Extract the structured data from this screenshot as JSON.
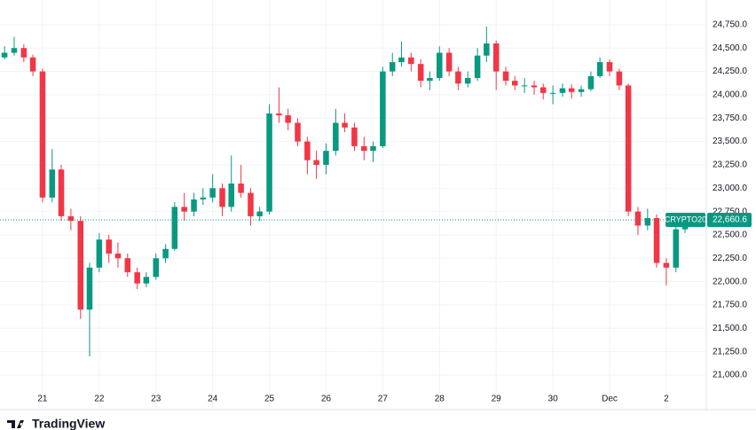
{
  "chart_data": {
    "type": "candlestick",
    "x": [
      20.33,
      20.5,
      20.67,
      20.83,
      21,
      21.17,
      21.33,
      21.5,
      21.67,
      21.83,
      22,
      22.17,
      22.33,
      22.5,
      22.67,
      22.83,
      23,
      23.17,
      23.33,
      23.5,
      23.67,
      23.83,
      24,
      24.17,
      24.33,
      24.5,
      24.67,
      24.83,
      25,
      25.17,
      25.33,
      25.5,
      25.67,
      25.83,
      26,
      26.17,
      26.33,
      26.5,
      26.67,
      26.83,
      27,
      27.17,
      27.33,
      27.5,
      27.67,
      27.83,
      28,
      28.17,
      28.33,
      28.5,
      28.67,
      28.83,
      29,
      29.17,
      29.33,
      29.5,
      29.67,
      29.83,
      30,
      30.17,
      30.33,
      30.5,
      30.67,
      30.83,
      31,
      31.17,
      31.33,
      31.5,
      31.67,
      31.83,
      32,
      32.17,
      32.33
    ],
    "open": [
      24400,
      24450,
      24500,
      24400,
      24250,
      22900,
      23200,
      22700,
      22650,
      21700,
      22150,
      22450,
      22300,
      22250,
      22100,
      21980,
      22050,
      22250,
      22350,
      22800,
      22750,
      22880,
      22900,
      23000,
      22800,
      23050,
      22950,
      22700,
      22750,
      23800,
      23780,
      23700,
      23500,
      23300,
      23250,
      23400,
      23700,
      23650,
      23450,
      23400,
      23450,
      24250,
      24350,
      24400,
      24330,
      24150,
      24180,
      24450,
      24250,
      24120,
      24180,
      24420,
      24550,
      24250,
      24150,
      24100,
      24100,
      24080,
      24020,
      24020,
      24070,
      24030,
      24060,
      24200,
      24350,
      24250,
      24100,
      22750,
      22600,
      22680,
      22200,
      22150,
      22560
    ],
    "high": [
      24520,
      24620,
      24540,
      24430,
      24280,
      23420,
      23250,
      22780,
      22700,
      22200,
      22520,
      22500,
      22420,
      22300,
      22150,
      22100,
      22300,
      22400,
      22850,
      22950,
      22950,
      23000,
      23150,
      23050,
      23350,
      23250,
      23000,
      22800,
      23900,
      24080,
      23850,
      23750,
      23550,
      23400,
      23480,
      23850,
      23800,
      23700,
      23550,
      23500,
      24300,
      24450,
      24570,
      24450,
      24380,
      24250,
      24520,
      24500,
      24300,
      24250,
      24500,
      24730,
      24580,
      24300,
      24200,
      24180,
      24150,
      24120,
      24100,
      24120,
      24110,
      24100,
      24250,
      24400,
      24380,
      24280,
      24120,
      22800,
      22780,
      22720,
      22250,
      22600,
      22690
    ],
    "low": [
      24380,
      24420,
      24350,
      24200,
      22850,
      22850,
      22650,
      22550,
      21600,
      21200,
      22100,
      22200,
      22150,
      22050,
      21920,
      21940,
      22020,
      22200,
      22330,
      22650,
      22700,
      22820,
      22850,
      22700,
      22750,
      22900,
      22600,
      22650,
      22720,
      23700,
      23620,
      23450,
      23150,
      23100,
      23150,
      23350,
      23600,
      23400,
      23300,
      23280,
      23430,
      24200,
      24300,
      24250,
      24080,
      24050,
      24150,
      24200,
      24050,
      24080,
      24150,
      24350,
      24050,
      24100,
      24050,
      24020,
      24000,
      23950,
      23900,
      23980,
      23960,
      23980,
      24040,
      24180,
      24200,
      24050,
      22700,
      22500,
      22550,
      22150,
      21960,
      22100,
      22520
    ],
    "close": [
      24450,
      24500,
      24400,
      24250,
      22900,
      23200,
      22700,
      22650,
      21700,
      22150,
      22450,
      22300,
      22250,
      22100,
      21980,
      22050,
      22250,
      22350,
      22800,
      22750,
      22880,
      22900,
      23000,
      22800,
      23050,
      22950,
      22700,
      22750,
      23800,
      23780,
      23700,
      23500,
      23300,
      23250,
      23400,
      23700,
      23650,
      23450,
      23400,
      23450,
      24250,
      24350,
      24400,
      24330,
      24150,
      24180,
      24450,
      24250,
      24120,
      24180,
      24420,
      24550,
      24250,
      24150,
      24100,
      24100,
      24080,
      24020,
      24020,
      24070,
      24030,
      24060,
      24200,
      24350,
      24250,
      24100,
      22750,
      22600,
      22680,
      22200,
      22150,
      22560,
      22660.6
    ],
    "up_color": "#089981",
    "down_color": "#f23645",
    "xlim": [
      20.25,
      32.69
    ],
    "xticks": [
      21,
      22,
      23,
      24,
      25,
      26,
      27,
      28,
      29,
      30,
      {
        "value": 31,
        "label": "Dec"
      },
      {
        "value": 32,
        "label": "2"
      }
    ],
    "ylim": [
      20867,
      25015
    ],
    "yticks": [
      {
        "value": 24750,
        "label": "24,750.0"
      },
      {
        "value": 24500,
        "label": "24,500.0"
      },
      {
        "value": 24250,
        "label": "24,250.0"
      },
      {
        "value": 24000,
        "label": "24,000.0"
      },
      {
        "value": 23750,
        "label": "23,750.0"
      },
      {
        "value": 23500,
        "label": "23,500.0"
      },
      {
        "value": 23250,
        "label": "23,250.0"
      },
      {
        "value": 23000,
        "label": "23,000.0"
      },
      {
        "value": 22750,
        "label": "22,750.0"
      },
      {
        "value": 22500,
        "label": "22,500.0"
      },
      {
        "value": 22250,
        "label": "22,250.0"
      },
      {
        "value": 22000,
        "label": "22,000.0"
      },
      {
        "value": 21750,
        "label": "21,750.0"
      },
      {
        "value": 21500,
        "label": "21,500.0"
      },
      {
        "value": 21250,
        "label": "21,250.0"
      },
      {
        "value": 21000,
        "label": "21,000.0"
      }
    ],
    "grid": true,
    "last_price": {
      "name": "CRYPTO20",
      "value": 22660.6,
      "label": "22,660.6"
    },
    "brand": "TradingView"
  }
}
